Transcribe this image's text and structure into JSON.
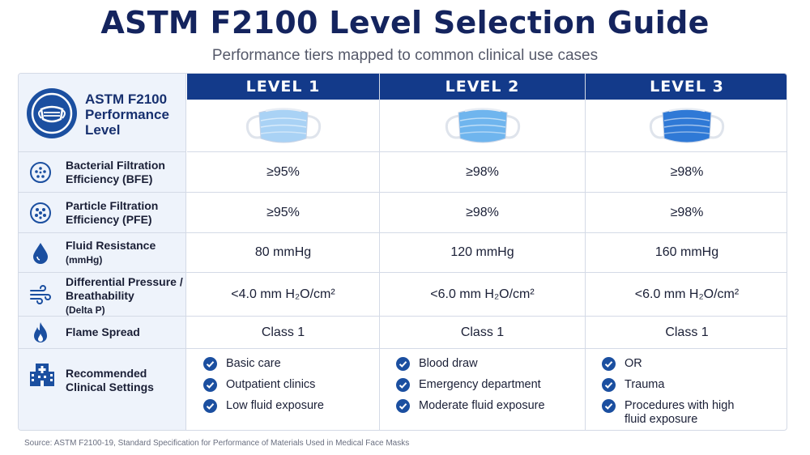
{
  "title": "ASTM F2100 Level Selection Guide",
  "subtitle": "Performance tiers mapped to common clinical use cases",
  "header": {
    "label": "ASTM F2100 Performance Level",
    "levels": [
      "LEVEL 1",
      "LEVEL 2",
      "LEVEL 3"
    ],
    "mask_colors": [
      "#a9d2f5",
      "#6fb5ee",
      "#2f79d6"
    ]
  },
  "rows": [
    {
      "icon": "bacteria-icon",
      "label": "Bacterial Filtration",
      "label2": "Efficiency (BFE)",
      "values": [
        "≥95%",
        "≥98%",
        "≥98%"
      ]
    },
    {
      "icon": "particle-icon",
      "label": "Particle Filtration",
      "label2": "Efficiency (PFE)",
      "values": [
        "≥95%",
        "≥98%",
        "≥98%"
      ]
    },
    {
      "icon": "droplet-icon",
      "label": "Fluid Resistance",
      "label2": "(mmHg)",
      "values": [
        "80 mmHg",
        "120 mmHg",
        "160 mmHg"
      ]
    },
    {
      "icon": "airflow-icon",
      "label": "Differential Pressure /",
      "label2": "Breathability",
      "label3": "(Delta P)",
      "values": [
        "<4.0 mm H₂O/cm²",
        "<6.0 mm H₂O/cm²",
        "<6.0 mm H₂O/cm²"
      ]
    },
    {
      "icon": "flame-icon",
      "label": "Flame Spread",
      "values": [
        "Class 1",
        "Class 1",
        "Class 1"
      ]
    }
  ],
  "settings": {
    "label": "Recommended",
    "label2": "Clinical Settings",
    "icon": "hospital-icon",
    "levels": [
      [
        "Basic care",
        "Outpatient clinics",
        "Low fluid exposure"
      ],
      [
        "Blood draw",
        "Emergency department",
        "Moderate fluid exposure"
      ],
      [
        "OR",
        "Trauma",
        "Procedures with high fluid exposure"
      ]
    ]
  },
  "source": "Source: ASTM F2100-19, Standard Specification for Performance of Materials Used in Medical Face Masks"
}
